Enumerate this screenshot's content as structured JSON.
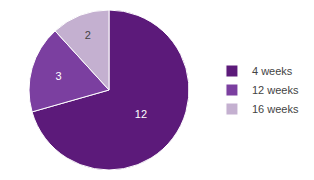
{
  "chart_data": {
    "type": "pie",
    "categories": [
      "4 weeks",
      "12 weeks",
      "16 weeks"
    ],
    "values": [
      12,
      3,
      2
    ],
    "colors": [
      "#5c1a7a",
      "#7b3fa0",
      "#c4b0d0"
    ],
    "data_labels": true,
    "legend": "right"
  }
}
